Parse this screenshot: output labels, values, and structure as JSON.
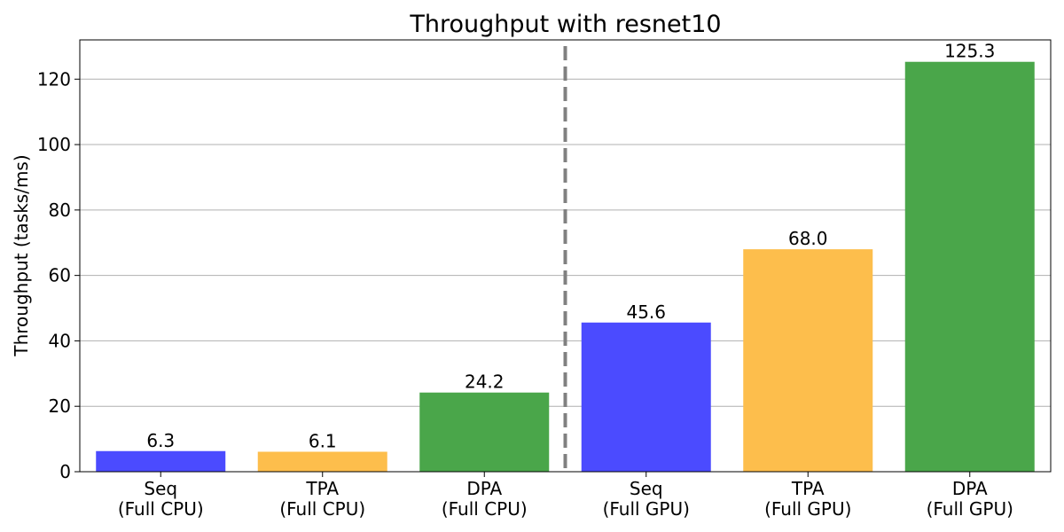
{
  "chart_data": {
    "type": "bar",
    "title": "Throughput with resnet10",
    "ylabel": "Throughput (tasks/ms)",
    "xlabel": "",
    "ylim": [
      0,
      132
    ],
    "yticks": [
      0,
      20,
      40,
      60,
      80,
      100,
      120
    ],
    "grid": "horizontal",
    "categories": [
      [
        "Seq",
        "(Full CPU)"
      ],
      [
        "TPA",
        "(Full CPU)"
      ],
      [
        "DPA",
        "(Full CPU)"
      ],
      [
        "Seq",
        "(Full GPU)"
      ],
      [
        "TPA",
        "(Full GPU)"
      ],
      [
        "DPA",
        "(Full GPU)"
      ]
    ],
    "values": [
      6.3,
      6.1,
      24.2,
      45.6,
      68.0,
      125.3
    ],
    "value_labels": [
      "6.3",
      "6.1",
      "24.2",
      "45.6",
      "68.0",
      "125.3"
    ],
    "bar_colors": [
      "#4b4bff",
      "#fdbe4c",
      "#4aa64a",
      "#4b4bff",
      "#fdbe4c",
      "#4aa64a"
    ],
    "separator": {
      "after_category_index": 2,
      "style": "dashed",
      "color": "#808080"
    }
  }
}
